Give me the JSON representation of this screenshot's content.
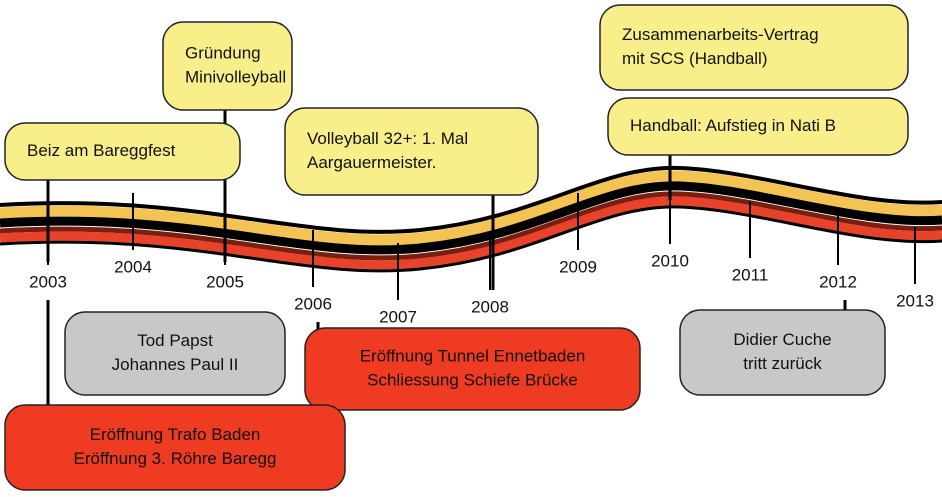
{
  "years": [
    "2003",
    "2004",
    "2005",
    "2006",
    "2007",
    "2008",
    "2009",
    "2010",
    "2011",
    "2012",
    "2013"
  ],
  "events_above": [
    {
      "lines": [
        "Beiz am Bareggfest"
      ]
    },
    {
      "lines": [
        "Gründung",
        "Minivolleyball"
      ]
    },
    {
      "lines": [
        "Volleyball 32+: 1. Mal",
        "Aargauermeister."
      ]
    },
    {
      "lines": [
        "Zusammenarbeits-Vertrag",
        "mit SCS (Handball)"
      ]
    },
    {
      "lines": [
        "Handball: Aufstieg in Nati B"
      ]
    }
  ],
  "events_below": [
    {
      "lines": [
        "Tod Papst",
        "Johannes Paul II"
      ]
    },
    {
      "lines": [
        "Eröffnung Tunnel Ennetbaden",
        "Schliessung Schiefe Brücke"
      ]
    },
    {
      "lines": [
        "Didier Cuche",
        "tritt zurück"
      ]
    },
    {
      "lines": [
        "Eröffnung Trafo Baden",
        "Eröffnung 3. Röhre Baregg"
      ]
    }
  ]
}
